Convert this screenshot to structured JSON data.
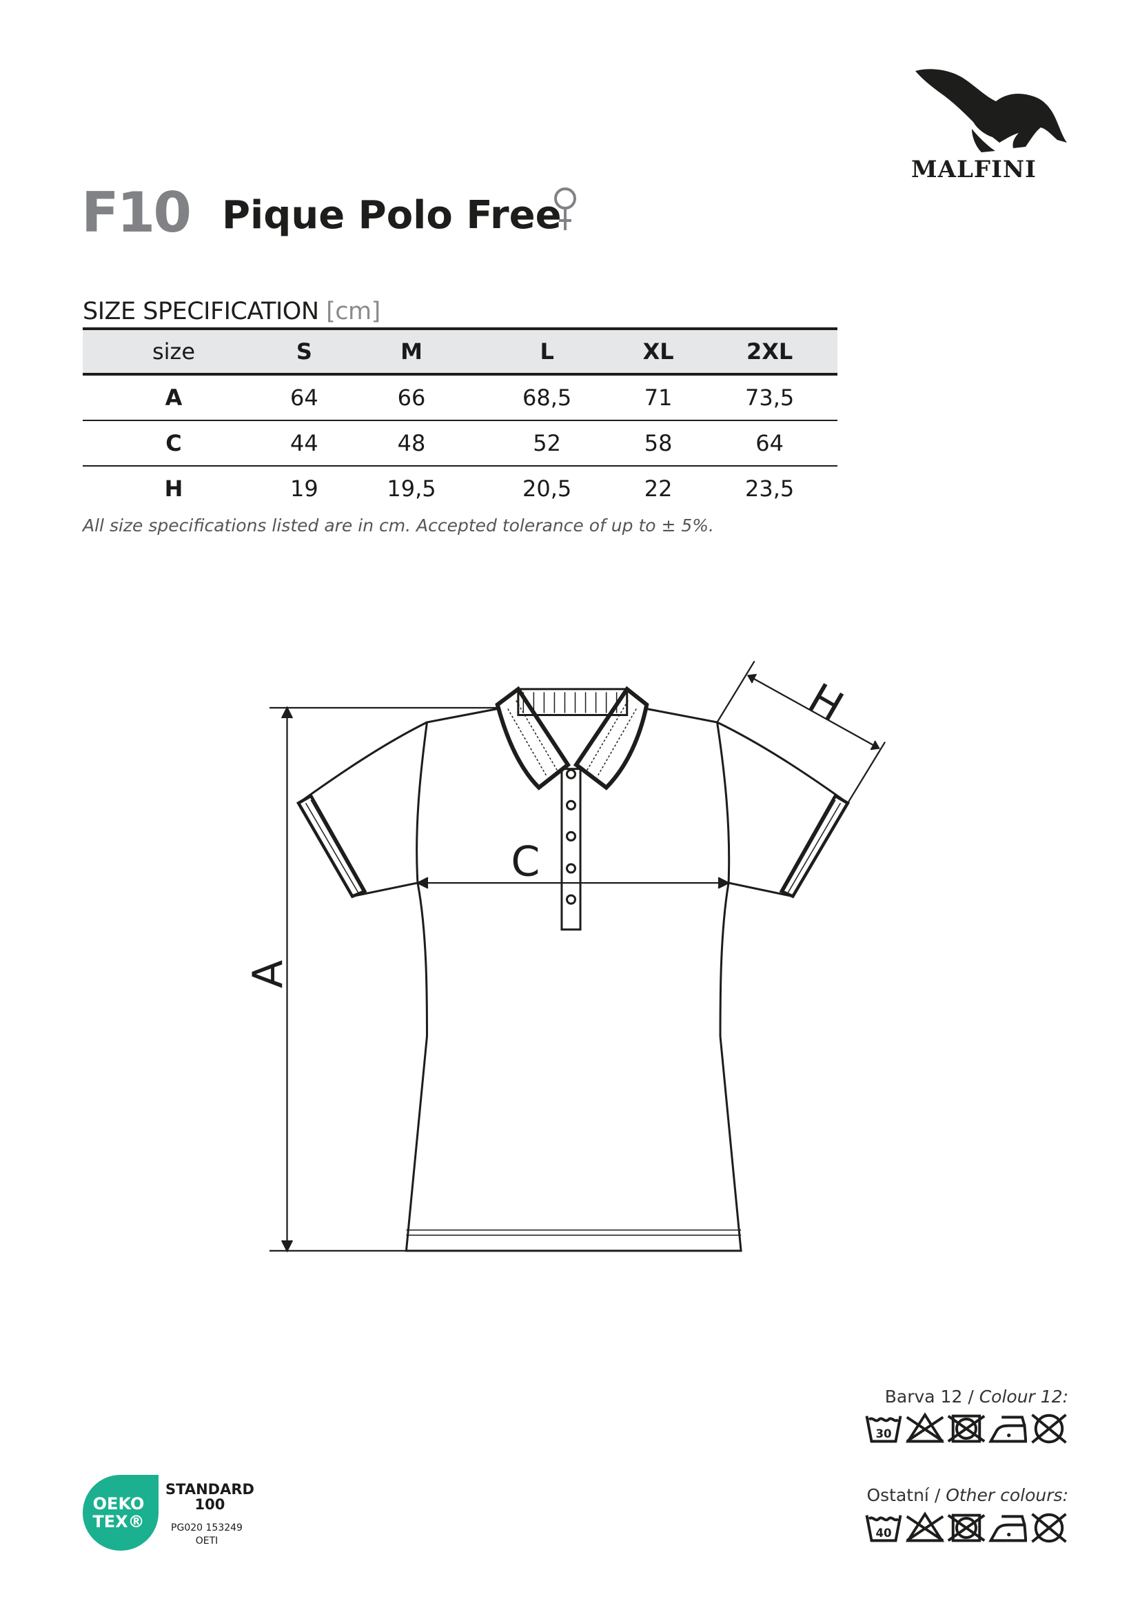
{
  "brand": {
    "name": "MALFINI",
    "logo_icon": "eagle-icon"
  },
  "product": {
    "code": "F10",
    "name": "Pique Polo Free",
    "gender_icon": "female-symbol-icon"
  },
  "spec": {
    "title": "SIZE SPECIFICATION",
    "unit": "[cm]",
    "header": [
      "size",
      "S",
      "M",
      "L",
      "XL",
      "2XL"
    ],
    "rows": [
      {
        "label": "A",
        "values": [
          "64",
          "66",
          "68,5",
          "71",
          "73,5"
        ]
      },
      {
        "label": "C",
        "values": [
          "44",
          "48",
          "52",
          "58",
          "64"
        ]
      },
      {
        "label": "H",
        "values": [
          "19",
          "19,5",
          "20,5",
          "22",
          "23,5"
        ]
      }
    ],
    "note": "All size specifications listed are in cm. Accepted tolerance of up to ± 5%."
  },
  "diagram": {
    "labels": {
      "a": "A",
      "c": "C",
      "h": "H"
    }
  },
  "care": {
    "colour12": {
      "label_cz": "Barva 12 /",
      "label_en": "Colour 12:",
      "wash_temp": "30"
    },
    "other": {
      "label_cz": "Ostatní /",
      "label_en": "Other colours:",
      "wash_temp": "40"
    },
    "icons": [
      "wash-icon",
      "no-bleach-icon",
      "no-tumble-dry-icon",
      "iron-low-icon",
      "no-dry-clean-icon"
    ]
  },
  "certification": {
    "logo_line1": "OEKO",
    "logo_line2": "TEX®",
    "standard_line1": "STANDARD",
    "standard_line2": "100",
    "code": "PG020 153249",
    "institute": "OETI",
    "color": "#1bb08f"
  }
}
